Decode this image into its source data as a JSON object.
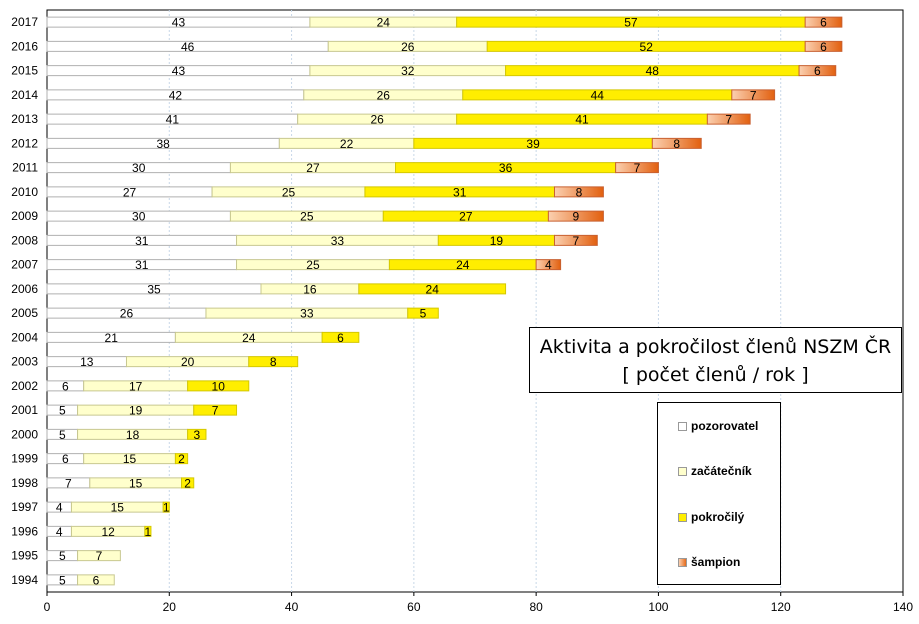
{
  "chart_data": {
    "type": "bar",
    "orientation": "horizontal",
    "stacked": true,
    "title": "Aktivita a pokročilost členů NSZM ČR",
    "subtitle": "[ počet členů / rok ]",
    "categories": [
      "2017",
      "2016",
      "2015",
      "2014",
      "2013",
      "2012",
      "2011",
      "2010",
      "2009",
      "2008",
      "2007",
      "2006",
      "2005",
      "2004",
      "2003",
      "2002",
      "2001",
      "2000",
      "1999",
      "1998",
      "1997",
      "1996",
      "1995",
      "1994"
    ],
    "series": [
      {
        "name": "pozorovatel",
        "color": "#ffffff",
        "values": [
          43,
          46,
          43,
          42,
          41,
          38,
          30,
          27,
          30,
          31,
          31,
          35,
          26,
          21,
          13,
          6,
          5,
          5,
          6,
          7,
          4,
          4,
          5,
          5
        ]
      },
      {
        "name": "začátečník",
        "color": "#ffffcc",
        "values": [
          24,
          26,
          32,
          26,
          26,
          22,
          27,
          25,
          25,
          33,
          25,
          16,
          33,
          24,
          20,
          17,
          19,
          18,
          15,
          15,
          15,
          12,
          7,
          6
        ]
      },
      {
        "name": "pokročilý",
        "color": "#ffee00",
        "values": [
          57,
          52,
          48,
          44,
          41,
          39,
          36,
          31,
          27,
          19,
          24,
          24,
          5,
          6,
          8,
          10,
          7,
          3,
          2,
          2,
          1,
          1,
          0,
          0
        ]
      },
      {
        "name": "šampion",
        "color": "#f39a5e",
        "values": [
          6,
          6,
          6,
          7,
          7,
          8,
          7,
          8,
          9,
          7,
          4,
          0,
          0,
          0,
          0,
          0,
          0,
          0,
          0,
          0,
          0,
          0,
          0,
          0
        ]
      }
    ],
    "xlim": [
      0,
      140
    ],
    "xticks": [
      0,
      20,
      40,
      60,
      80,
      100,
      120,
      140
    ],
    "grid": "vertical",
    "legend_position": "right"
  }
}
